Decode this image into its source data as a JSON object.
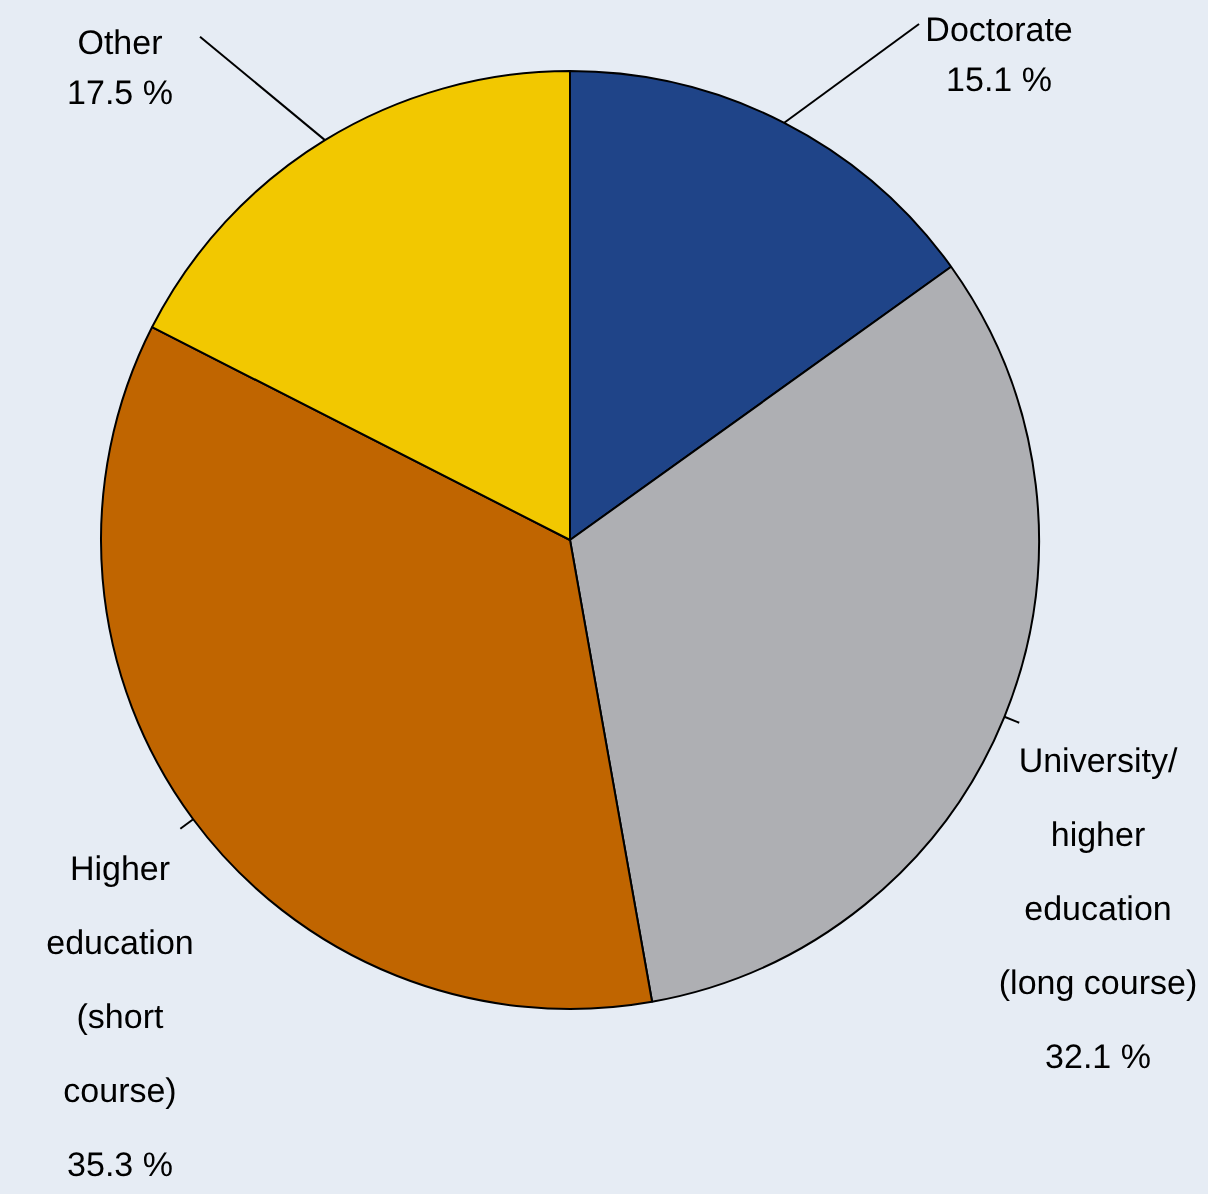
{
  "chart_data": {
    "type": "pie",
    "categories": [
      "Doctorate",
      "University/ higher education (long course)",
      "Higher education (short course)",
      "Other"
    ],
    "values": [
      15.1,
      32.1,
      35.3,
      17.5
    ],
    "value_labels": [
      "15.1 %",
      "32.1 %",
      "35.3 %",
      "17.5 %"
    ],
    "colors": [
      "#1f4488",
      "#aeafb3",
      "#c06500",
      "#f2c800"
    ],
    "legend": false
  }
}
